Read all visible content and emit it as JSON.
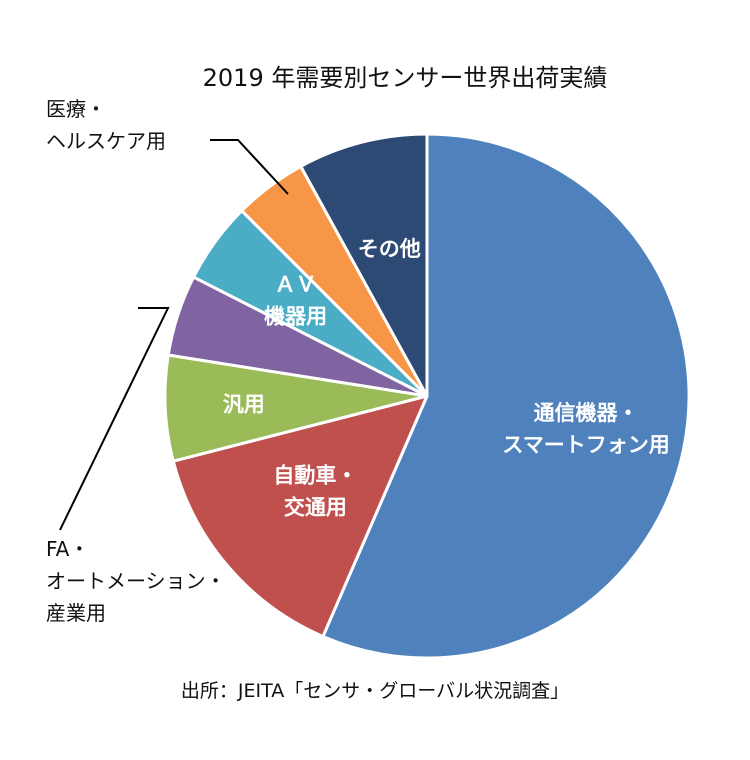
{
  "chart_data": {
    "type": "pie",
    "title": "2019 年需要別センサー世界出荷実績",
    "source": "出所：JEITA「センサ・グローバル状況調査」",
    "slices": [
      {
        "label_lines": [
          "通信機器・",
          "スマートフォン用"
        ],
        "value": 56.5,
        "color": "#4F81BD",
        "label_position": "inside"
      },
      {
        "label_lines": [
          "自動車・",
          "交通用"
        ],
        "value": 14.5,
        "color": "#C0504D",
        "label_position": "inside"
      },
      {
        "label_lines": [
          "汎用"
        ],
        "value": 6.5,
        "color": "#9BBB59",
        "label_position": "inside"
      },
      {
        "label_lines": [
          "FA・",
          "オートメーション・",
          "産業用"
        ],
        "value": 5.0,
        "color": "#8064A2",
        "label_position": "outside"
      },
      {
        "label_lines": [
          "ＡＶ",
          "機器用"
        ],
        "value": 5.0,
        "color": "#4BACC6",
        "label_position": "inside"
      },
      {
        "label_lines": [
          "医療・",
          "ヘルスケア用"
        ],
        "value": 4.5,
        "color": "#F79646",
        "label_position": "outside"
      },
      {
        "label_lines": [
          "その他"
        ],
        "value": 8.0,
        "color": "#2C4A74",
        "label_position": "inside"
      }
    ]
  }
}
